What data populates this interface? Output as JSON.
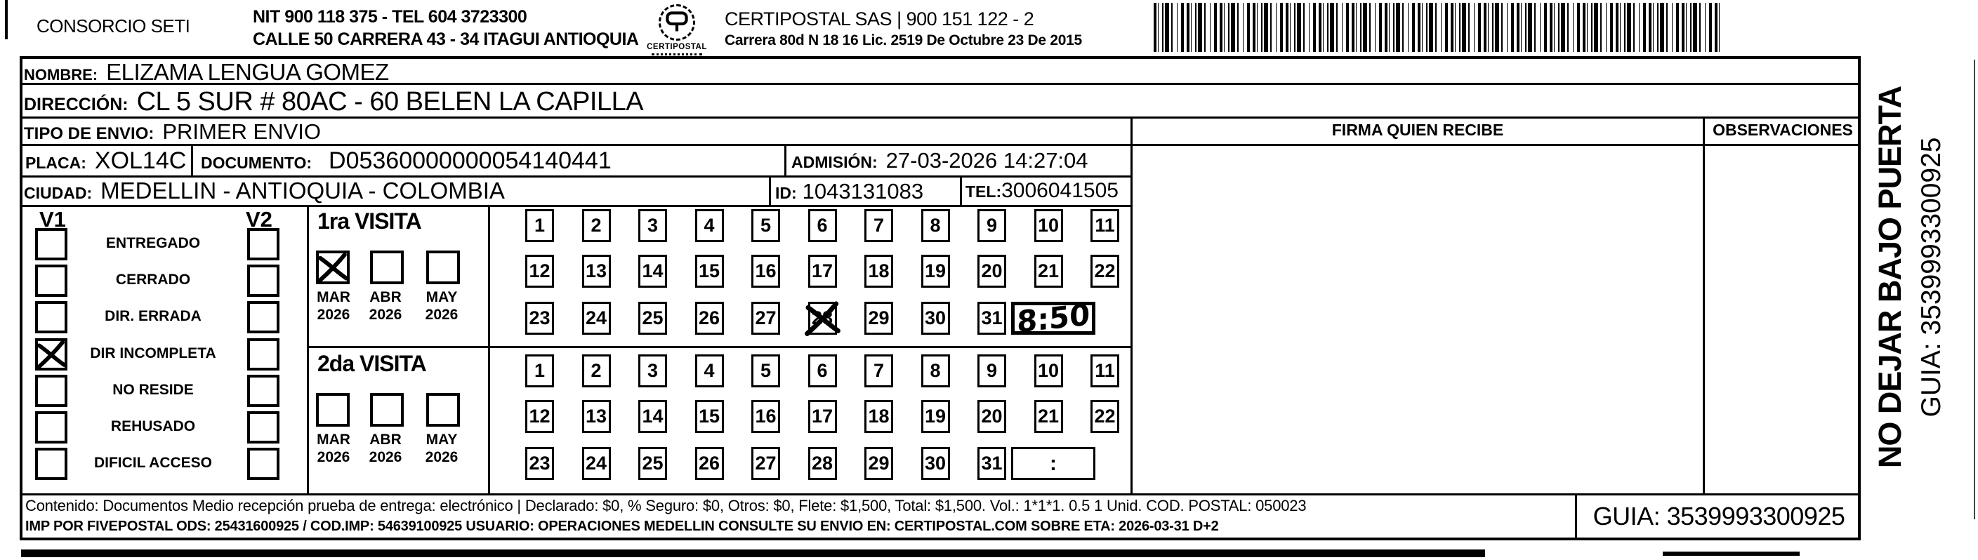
{
  "header": {
    "company": "CONSORCIO SETI",
    "nit_line": "NIT 900 118 375 - TEL 604 3723300",
    "address_line": "CALLE 50 CARRERA 43 - 34 ITAGUI ANTIOQUIA",
    "logo_text": "CERTIPOSTAL",
    "provider_line": "CERTIPOSTAL SAS | 900 151 122 - 2",
    "provider_address": "Carrera 80d N 18 16  Lic. 2519 De Octubre 23 De 2015"
  },
  "recipient": {
    "nombre_label": "NOMBRE:",
    "nombre": "ELIZAMA LENGUA GOMEZ",
    "direccion_label": "DIRECCIÓN:",
    "direccion": "CL 5 SUR # 80AC - 60 BELEN LA CAPILLA",
    "tipo_label": "TIPO DE ENVIO:",
    "tipo": "PRIMER ENVIO",
    "placa_label": "PLACA:",
    "placa": "XOL14C",
    "documento_label": "DOCUMENTO:",
    "documento": "D05360000000054140441",
    "admision_label": "ADMISIÓN:",
    "admision": "27-03-2026 14:27:04",
    "ciudad_label": "CIUDAD:",
    "ciudad": "MEDELLIN - ANTIOQUIA - COLOMBIA",
    "id_label": "ID:",
    "id": "1043131083",
    "tel_label": "TEL:",
    "tel": "3006041505"
  },
  "columns": {
    "firma": "FIRMA QUIEN RECIBE",
    "observaciones": "OBSERVACIONES"
  },
  "status": {
    "col1_header": "V1",
    "col2_header": "V2",
    "options": [
      {
        "label": "ENTREGADO",
        "v1": false,
        "v2": false
      },
      {
        "label": "CERRADO",
        "v1": false,
        "v2": false
      },
      {
        "label": "DIR. ERRADA",
        "v1": false,
        "v2": false
      },
      {
        "label": "DIR INCOMPLETA",
        "v1": true,
        "v2": false
      },
      {
        "label": "NO RESIDE",
        "v1": false,
        "v2": false
      },
      {
        "label": "REHUSADO",
        "v1": false,
        "v2": false
      },
      {
        "label": "DIFICIL ACCESO",
        "v1": false,
        "v2": false
      }
    ]
  },
  "visits": [
    {
      "title": "1ra VISITA",
      "months": [
        {
          "month": "MAR",
          "year": "2026",
          "checked": true
        },
        {
          "month": "ABR",
          "year": "2026",
          "checked": false
        },
        {
          "month": "MAY",
          "year": "2026",
          "checked": false
        }
      ],
      "day_rows": [
        [
          1,
          2,
          3,
          4,
          5,
          6,
          7,
          8,
          9,
          10,
          11
        ],
        [
          12,
          13,
          14,
          15,
          16,
          17,
          18,
          19,
          20,
          21,
          22
        ],
        [
          23,
          24,
          25,
          26,
          27,
          28,
          29,
          30,
          31
        ]
      ],
      "crossed_day": 28,
      "time_note": "8:50",
      "time_placeholder": ""
    },
    {
      "title": "2da VISITA",
      "months": [
        {
          "month": "MAR",
          "year": "2026",
          "checked": false
        },
        {
          "month": "ABR",
          "year": "2026",
          "checked": false
        },
        {
          "month": "MAY",
          "year": "2026",
          "checked": false
        }
      ],
      "day_rows": [
        [
          1,
          2,
          3,
          4,
          5,
          6,
          7,
          8,
          9,
          10,
          11
        ],
        [
          12,
          13,
          14,
          15,
          16,
          17,
          18,
          19,
          20,
          21,
          22
        ],
        [
          23,
          24,
          25,
          26,
          27,
          28,
          29,
          30,
          31
        ]
      ],
      "crossed_day": null,
      "time_note": "",
      "time_placeholder": ":"
    }
  ],
  "footer": {
    "line1": "Contenido: Documentos Medio recepción prueba de entrega: electrónico | Declarado: $0, % Seguro: $0, Otros: $0, Flete: $1,500, Total: $1,500. Vol.: 1*1*1. 0.5  1 Unid. COD. POSTAL: 050023",
    "line2": "IMP POR FIVEPOSTAL ODS: 25431600925 / COD.IMP: 54639100925 USUARIO: OPERACIONES MEDELLIN CONSULTE SU ENVIO EN: CERTIPOSTAL.COM SOBRE ETA: 2026-03-31 D+2",
    "guia": "GUIA: 3539993300925"
  },
  "side": {
    "warning": "NO DEJAR BAJO PUERTA",
    "guia": "GUIA: 3539993300925"
  }
}
